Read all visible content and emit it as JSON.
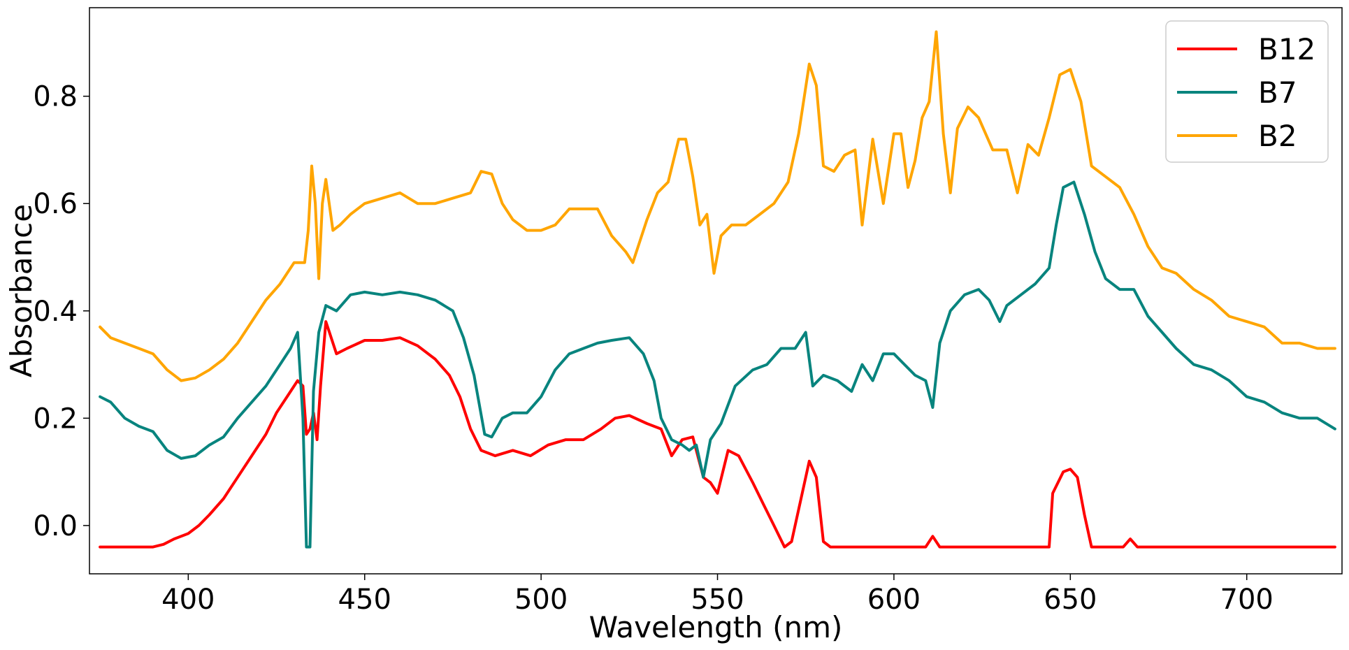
{
  "chart_data": {
    "type": "line",
    "title": "",
    "xlabel": "Wavelength (nm)",
    "ylabel": "Absorbance",
    "xlim": [
      372,
      727
    ],
    "ylim": [
      -0.09,
      0.965
    ],
    "xticks": [
      400,
      450,
      500,
      550,
      600,
      650,
      700
    ],
    "yticks": [
      0.0,
      0.2,
      0.4,
      0.6,
      0.8
    ],
    "xtick_labels": [
      "400",
      "450",
      "500",
      "550",
      "600",
      "650",
      "700"
    ],
    "ytick_labels": [
      "0.0",
      "0.2",
      "0.4",
      "0.6",
      "0.8"
    ],
    "grid": false,
    "legend_position": "top-right",
    "series": [
      {
        "name": "B12",
        "color": "#ff0000",
        "points": [
          [
            375,
            -0.04
          ],
          [
            385,
            -0.04
          ],
          [
            390,
            -0.04
          ],
          [
            393,
            -0.035
          ],
          [
            396,
            -0.025
          ],
          [
            400,
            -0.015
          ],
          [
            403,
            0.0
          ],
          [
            406,
            0.02
          ],
          [
            410,
            0.05
          ],
          [
            414,
            0.09
          ],
          [
            418,
            0.13
          ],
          [
            422,
            0.17
          ],
          [
            425,
            0.21
          ],
          [
            428,
            0.24
          ],
          [
            431,
            0.27
          ],
          [
            432.5,
            0.26
          ],
          [
            433.5,
            0.17
          ],
          [
            434.5,
            0.18
          ],
          [
            435.5,
            0.21
          ],
          [
            436.5,
            0.16
          ],
          [
            437.5,
            0.26
          ],
          [
            439,
            0.38
          ],
          [
            440,
            0.36
          ],
          [
            442,
            0.32
          ],
          [
            445,
            0.33
          ],
          [
            450,
            0.345
          ],
          [
            455,
            0.345
          ],
          [
            460,
            0.35
          ],
          [
            465,
            0.335
          ],
          [
            470,
            0.31
          ],
          [
            474,
            0.28
          ],
          [
            477,
            0.24
          ],
          [
            480,
            0.18
          ],
          [
            483,
            0.14
          ],
          [
            487,
            0.13
          ],
          [
            492,
            0.14
          ],
          [
            497,
            0.13
          ],
          [
            502,
            0.15
          ],
          [
            507,
            0.16
          ],
          [
            512,
            0.16
          ],
          [
            517,
            0.18
          ],
          [
            521,
            0.2
          ],
          [
            525,
            0.205
          ],
          [
            530,
            0.19
          ],
          [
            534,
            0.18
          ],
          [
            537,
            0.13
          ],
          [
            540,
            0.16
          ],
          [
            543,
            0.165
          ],
          [
            546,
            0.09
          ],
          [
            548,
            0.08
          ],
          [
            550,
            0.06
          ],
          [
            553,
            0.14
          ],
          [
            556,
            0.13
          ],
          [
            560,
            0.08
          ],
          [
            563,
            0.04
          ],
          [
            566,
            0.0
          ],
          [
            569,
            -0.04
          ],
          [
            571,
            -0.03
          ],
          [
            574,
            0.06
          ],
          [
            576,
            0.12
          ],
          [
            578,
            0.09
          ],
          [
            580,
            -0.03
          ],
          [
            582,
            -0.04
          ],
          [
            590,
            -0.04
          ],
          [
            600,
            -0.04
          ],
          [
            609,
            -0.04
          ],
          [
            611,
            -0.02
          ],
          [
            613,
            -0.04
          ],
          [
            630,
            -0.04
          ],
          [
            644,
            -0.04
          ],
          [
            645,
            0.06
          ],
          [
            648,
            0.1
          ],
          [
            650,
            0.105
          ],
          [
            652,
            0.09
          ],
          [
            654,
            0.02
          ],
          [
            656,
            -0.04
          ],
          [
            665,
            -0.04
          ],
          [
            667,
            -0.025
          ],
          [
            669,
            -0.04
          ],
          [
            680,
            -0.04
          ],
          [
            700,
            -0.04
          ],
          [
            715,
            -0.04
          ],
          [
            725,
            -0.04
          ]
        ]
      },
      {
        "name": "B7",
        "color": "#08847e",
        "points": [
          [
            375,
            0.24
          ],
          [
            378,
            0.23
          ],
          [
            382,
            0.2
          ],
          [
            386,
            0.185
          ],
          [
            390,
            0.175
          ],
          [
            394,
            0.14
          ],
          [
            398,
            0.125
          ],
          [
            402,
            0.13
          ],
          [
            406,
            0.15
          ],
          [
            410,
            0.165
          ],
          [
            414,
            0.2
          ],
          [
            418,
            0.23
          ],
          [
            422,
            0.26
          ],
          [
            426,
            0.3
          ],
          [
            429,
            0.33
          ],
          [
            431,
            0.36
          ],
          [
            432.5,
            0.2
          ],
          [
            433.5,
            -0.04
          ],
          [
            434.5,
            -0.04
          ],
          [
            435.5,
            0.25
          ],
          [
            437,
            0.36
          ],
          [
            439,
            0.41
          ],
          [
            442,
            0.4
          ],
          [
            446,
            0.43
          ],
          [
            450,
            0.435
          ],
          [
            455,
            0.43
          ],
          [
            460,
            0.435
          ],
          [
            465,
            0.43
          ],
          [
            470,
            0.42
          ],
          [
            475,
            0.4
          ],
          [
            478,
            0.35
          ],
          [
            481,
            0.28
          ],
          [
            484,
            0.17
          ],
          [
            486,
            0.165
          ],
          [
            489,
            0.2
          ],
          [
            492,
            0.21
          ],
          [
            496,
            0.21
          ],
          [
            500,
            0.24
          ],
          [
            504,
            0.29
          ],
          [
            508,
            0.32
          ],
          [
            512,
            0.33
          ],
          [
            516,
            0.34
          ],
          [
            520,
            0.345
          ],
          [
            525,
            0.35
          ],
          [
            529,
            0.32
          ],
          [
            532,
            0.27
          ],
          [
            534,
            0.2
          ],
          [
            537,
            0.16
          ],
          [
            540,
            0.15
          ],
          [
            542,
            0.14
          ],
          [
            544,
            0.15
          ],
          [
            546,
            0.09
          ],
          [
            548,
            0.16
          ],
          [
            551,
            0.19
          ],
          [
            555,
            0.26
          ],
          [
            560,
            0.29
          ],
          [
            564,
            0.3
          ],
          [
            568,
            0.33
          ],
          [
            572,
            0.33
          ],
          [
            575,
            0.36
          ],
          [
            577,
            0.26
          ],
          [
            580,
            0.28
          ],
          [
            584,
            0.27
          ],
          [
            588,
            0.25
          ],
          [
            591,
            0.3
          ],
          [
            594,
            0.27
          ],
          [
            597,
            0.32
          ],
          [
            600,
            0.32
          ],
          [
            603,
            0.3
          ],
          [
            606,
            0.28
          ],
          [
            609,
            0.27
          ],
          [
            611,
            0.22
          ],
          [
            613,
            0.34
          ],
          [
            616,
            0.4
          ],
          [
            620,
            0.43
          ],
          [
            624,
            0.44
          ],
          [
            627,
            0.42
          ],
          [
            630,
            0.38
          ],
          [
            632,
            0.41
          ],
          [
            636,
            0.43
          ],
          [
            640,
            0.45
          ],
          [
            644,
            0.48
          ],
          [
            646,
            0.56
          ],
          [
            648,
            0.63
          ],
          [
            651,
            0.64
          ],
          [
            654,
            0.58
          ],
          [
            657,
            0.51
          ],
          [
            660,
            0.46
          ],
          [
            664,
            0.44
          ],
          [
            668,
            0.44
          ],
          [
            672,
            0.39
          ],
          [
            676,
            0.36
          ],
          [
            680,
            0.33
          ],
          [
            685,
            0.3
          ],
          [
            690,
            0.29
          ],
          [
            695,
            0.27
          ],
          [
            700,
            0.24
          ],
          [
            705,
            0.23
          ],
          [
            710,
            0.21
          ],
          [
            715,
            0.2
          ],
          [
            720,
            0.2
          ],
          [
            725,
            0.18
          ]
        ]
      },
      {
        "name": "B2",
        "color": "#ffa500",
        "points": [
          [
            375,
            0.37
          ],
          [
            378,
            0.35
          ],
          [
            382,
            0.34
          ],
          [
            386,
            0.33
          ],
          [
            390,
            0.32
          ],
          [
            394,
            0.29
          ],
          [
            398,
            0.27
          ],
          [
            402,
            0.275
          ],
          [
            406,
            0.29
          ],
          [
            410,
            0.31
          ],
          [
            414,
            0.34
          ],
          [
            418,
            0.38
          ],
          [
            422,
            0.42
          ],
          [
            426,
            0.45
          ],
          [
            430,
            0.49
          ],
          [
            433,
            0.49
          ],
          [
            434,
            0.55
          ],
          [
            435,
            0.67
          ],
          [
            436,
            0.6
          ],
          [
            437,
            0.46
          ],
          [
            438,
            0.6
          ],
          [
            439,
            0.645
          ],
          [
            441,
            0.55
          ],
          [
            443,
            0.56
          ],
          [
            446,
            0.58
          ],
          [
            450,
            0.6
          ],
          [
            455,
            0.61
          ],
          [
            460,
            0.62
          ],
          [
            465,
            0.6
          ],
          [
            470,
            0.6
          ],
          [
            475,
            0.61
          ],
          [
            480,
            0.62
          ],
          [
            483,
            0.66
          ],
          [
            486,
            0.655
          ],
          [
            489,
            0.6
          ],
          [
            492,
            0.57
          ],
          [
            496,
            0.55
          ],
          [
            500,
            0.55
          ],
          [
            504,
            0.56
          ],
          [
            508,
            0.59
          ],
          [
            512,
            0.59
          ],
          [
            516,
            0.59
          ],
          [
            520,
            0.54
          ],
          [
            524,
            0.51
          ],
          [
            526,
            0.49
          ],
          [
            530,
            0.57
          ],
          [
            533,
            0.62
          ],
          [
            536,
            0.64
          ],
          [
            539,
            0.72
          ],
          [
            541,
            0.72
          ],
          [
            543,
            0.65
          ],
          [
            545,
            0.56
          ],
          [
            547,
            0.58
          ],
          [
            549,
            0.47
          ],
          [
            551,
            0.54
          ],
          [
            554,
            0.56
          ],
          [
            558,
            0.56
          ],
          [
            562,
            0.58
          ],
          [
            566,
            0.6
          ],
          [
            570,
            0.64
          ],
          [
            573,
            0.73
          ],
          [
            576,
            0.86
          ],
          [
            578,
            0.82
          ],
          [
            580,
            0.67
          ],
          [
            583,
            0.66
          ],
          [
            586,
            0.69
          ],
          [
            589,
            0.7
          ],
          [
            591,
            0.56
          ],
          [
            594,
            0.72
          ],
          [
            597,
            0.6
          ],
          [
            600,
            0.73
          ],
          [
            602,
            0.73
          ],
          [
            604,
            0.63
          ],
          [
            606,
            0.68
          ],
          [
            608,
            0.76
          ],
          [
            610,
            0.79
          ],
          [
            612,
            0.92
          ],
          [
            614,
            0.73
          ],
          [
            616,
            0.62
          ],
          [
            618,
            0.74
          ],
          [
            621,
            0.78
          ],
          [
            624,
            0.76
          ],
          [
            628,
            0.7
          ],
          [
            632,
            0.7
          ],
          [
            635,
            0.62
          ],
          [
            638,
            0.71
          ],
          [
            641,
            0.69
          ],
          [
            644,
            0.76
          ],
          [
            647,
            0.84
          ],
          [
            650,
            0.85
          ],
          [
            653,
            0.79
          ],
          [
            656,
            0.67
          ],
          [
            660,
            0.65
          ],
          [
            664,
            0.63
          ],
          [
            668,
            0.58
          ],
          [
            672,
            0.52
          ],
          [
            676,
            0.48
          ],
          [
            680,
            0.47
          ],
          [
            685,
            0.44
          ],
          [
            690,
            0.42
          ],
          [
            695,
            0.39
          ],
          [
            700,
            0.38
          ],
          [
            705,
            0.37
          ],
          [
            710,
            0.34
          ],
          [
            715,
            0.34
          ],
          [
            720,
            0.33
          ],
          [
            725,
            0.33
          ]
        ]
      }
    ]
  }
}
